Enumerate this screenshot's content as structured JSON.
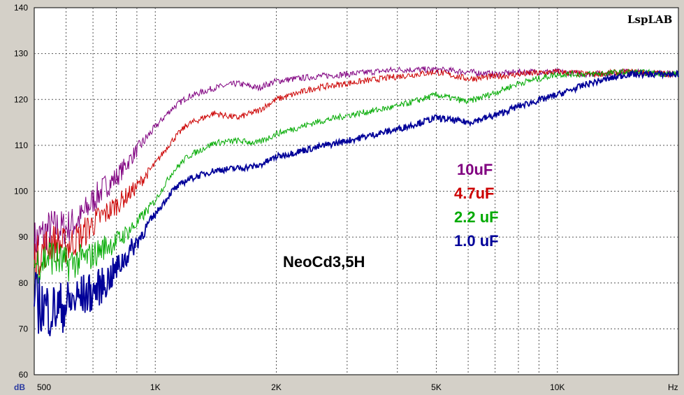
{
  "chart_data": {
    "type": "line",
    "title": "NeoCd3,5H",
    "watermark": "LspLAB",
    "x_scale": "log",
    "xlim": [
      500,
      20000
    ],
    "ylim": [
      60,
      140
    ],
    "y_unit": "dB",
    "x_unit": "Hz",
    "grid": true,
    "x_ticks": [
      {
        "value": 500,
        "label": "500"
      },
      {
        "value": 1000,
        "label": "1K"
      },
      {
        "value": 2000,
        "label": "2K"
      },
      {
        "value": 5000,
        "label": "5K"
      },
      {
        "value": 10000,
        "label": "10K"
      }
    ],
    "y_ticks": [
      60,
      70,
      80,
      90,
      100,
      110,
      120,
      130,
      140
    ],
    "legend_placement": "center-right",
    "series": [
      {
        "name": "10uF",
        "color": "#800080",
        "x": [
          500,
          550,
          600,
          650,
          700,
          750,
          800,
          850,
          900,
          1000,
          1100,
          1200,
          1400,
          1600,
          1800,
          2000,
          2500,
          3000,
          4000,
          5000,
          6000,
          7000,
          8000,
          10000,
          12000,
          15000,
          20000
        ],
        "y": [
          89,
          92,
          92,
          94,
          98,
          101,
          103,
          106,
          109,
          114,
          118,
          120.5,
          122.5,
          123.5,
          122.5,
          124,
          125,
          125.5,
          126.5,
          126.5,
          126,
          125.5,
          126,
          126,
          125.5,
          126,
          125.5
        ]
      },
      {
        "name": "4.7uF",
        "color": "#cc0000",
        "x": [
          500,
          550,
          600,
          650,
          700,
          750,
          800,
          850,
          900,
          1000,
          1100,
          1200,
          1400,
          1600,
          1800,
          2000,
          2500,
          3000,
          4000,
          5000,
          6000,
          7000,
          8000,
          10000,
          12000,
          15000,
          20000
        ],
        "y": [
          85,
          89,
          88,
          90,
          93,
          95,
          97,
          99,
          101,
          106,
          111,
          114.5,
          117,
          116,
          117.5,
          120,
          122.5,
          123.5,
          125,
          126,
          124.5,
          125,
          125.5,
          126,
          125.5,
          126,
          125.5
        ]
      },
      {
        "name": "2.2 uF",
        "color": "#00aa00",
        "x": [
          500,
          550,
          600,
          650,
          700,
          750,
          800,
          850,
          900,
          1000,
          1100,
          1200,
          1400,
          1600,
          1800,
          2000,
          2500,
          3000,
          4000,
          5000,
          6000,
          7000,
          8000,
          10000,
          12000,
          15000,
          20000
        ],
        "y": [
          84,
          86,
          84,
          85,
          86,
          88,
          89,
          91,
          93,
          98,
          104,
          107.5,
          110.5,
          111,
          110.5,
          112.5,
          115,
          116.5,
          118.5,
          121,
          119.5,
          121.5,
          123.5,
          125.5,
          125.5,
          126,
          125.5
        ]
      },
      {
        "name": "1.0 uF",
        "color": "#000099",
        "x": [
          500,
          550,
          600,
          650,
          700,
          750,
          800,
          850,
          900,
          1000,
          1100,
          1200,
          1400,
          1600,
          1800,
          2000,
          2500,
          3000,
          4000,
          5000,
          6000,
          7000,
          8000,
          10000,
          12000,
          15000,
          20000
        ],
        "y": [
          76,
          74,
          75,
          77,
          78,
          80,
          83,
          86,
          89,
          95,
          100,
          102.5,
          104.5,
          105,
          105.5,
          107.5,
          109.5,
          111,
          113.5,
          116,
          115,
          116.5,
          118.5,
          121,
          123.5,
          125.5,
          125.5
        ]
      }
    ]
  }
}
